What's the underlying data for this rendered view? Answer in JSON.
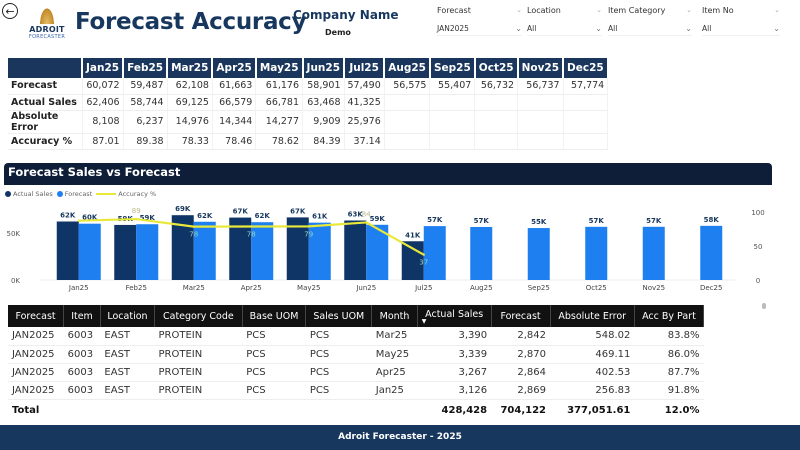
{
  "header": {
    "back_icon": "arrow-left-circle-icon",
    "logo_line1": "ADROIT",
    "logo_line2": "FORECASTER",
    "title": "Forecast Accuracy",
    "company_label": "Company Name",
    "company_value": "Demo"
  },
  "filters": [
    {
      "label": "Forecast",
      "value": "JAN2025"
    },
    {
      "label": "Location",
      "value": "All"
    },
    {
      "label": "Item Category",
      "value": "All"
    },
    {
      "label": "Item No",
      "value": "All"
    }
  ],
  "summary": {
    "months": [
      "Jan25",
      "Feb25",
      "Mar25",
      "Apr25",
      "May25",
      "Jun25",
      "Jul25",
      "Aug25",
      "Sep25",
      "Oct25",
      "Nov25",
      "Dec25"
    ],
    "rows": [
      {
        "label": "Forecast",
        "values": [
          "60,072",
          "59,487",
          "62,108",
          "61,663",
          "61,176",
          "58,901",
          "57,490",
          "56,575",
          "55,407",
          "56,732",
          "56,737",
          "57,774"
        ]
      },
      {
        "label": "Actual Sales",
        "values": [
          "62,406",
          "58,744",
          "69,125",
          "66,579",
          "66,781",
          "63,468",
          "41,325",
          "",
          "",
          "",
          "",
          ""
        ]
      },
      {
        "label": "Absolute Error",
        "values": [
          "8,108",
          "6,237",
          "14,976",
          "14,344",
          "14,277",
          "9,909",
          "25,976",
          "",
          "",
          "",
          "",
          ""
        ]
      },
      {
        "label": "Accuracy %",
        "values": [
          "87.01",
          "89.38",
          "78.33",
          "78.46",
          "78.62",
          "84.39",
          "37.14",
          "",
          "",
          "",
          "",
          ""
        ]
      }
    ]
  },
  "chart": {
    "title": "Forecast Sales vs Forecast",
    "legend": [
      "Actual Sales",
      "Forecast",
      "Accuracy %"
    ]
  },
  "chart_data": {
    "type": "bar",
    "title": "Forecast Sales vs Forecast",
    "categories": [
      "Jan25",
      "Feb25",
      "Mar25",
      "Apr25",
      "May25",
      "Jun25",
      "Jul25",
      "Aug25",
      "Sep25",
      "Oct25",
      "Nov25",
      "Dec25"
    ],
    "series": [
      {
        "name": "Actual Sales",
        "type": "bar",
        "color": "#0f3566",
        "values": [
          62406,
          58744,
          69125,
          66579,
          66781,
          63468,
          41325,
          null,
          null,
          null,
          null,
          null
        ],
        "labels": [
          "62K",
          "59K",
          "69K",
          "67K",
          "67K",
          "63K",
          "41K",
          "",
          "",
          "",
          "",
          ""
        ]
      },
      {
        "name": "Forecast",
        "type": "bar",
        "color": "#1e80f0",
        "values": [
          60072,
          59487,
          62108,
          61663,
          61176,
          58901,
          57490,
          56575,
          55407,
          56732,
          56737,
          57774
        ],
        "labels": [
          "60K",
          "59K",
          "62K",
          "62K",
          "61K",
          "59K",
          "57K",
          "57K",
          "55K",
          "57K",
          "57K",
          "58K"
        ]
      },
      {
        "name": "Accuracy %",
        "type": "line",
        "color": "#e8e83a",
        "axis": "right",
        "values": [
          87.01,
          89.38,
          78.33,
          78.46,
          78.62,
          84.39,
          37.14,
          null,
          null,
          null,
          null,
          null
        ],
        "labels": [
          "",
          "89",
          "78",
          "78",
          "79",
          "84",
          "37",
          "",
          "",
          "",
          "",
          ""
        ]
      }
    ],
    "y_left": {
      "ticks": [
        "0K",
        "50K"
      ],
      "range": [
        0,
        80000
      ]
    },
    "y_right": {
      "ticks": [
        "0",
        "50",
        "100"
      ],
      "range": [
        0,
        110
      ]
    },
    "legend_position": "top-left"
  },
  "detail": {
    "columns": [
      "Forecast",
      "Item",
      "Location",
      "Category Code",
      "Base UOM",
      "Sales UOM",
      "Month",
      "Actual Sales",
      "Forecast",
      "Absolute Error",
      "Acc By Part"
    ],
    "sort_icon": "sort-descending-icon",
    "rows": [
      [
        "JAN2025",
        "6003",
        "EAST",
        "PROTEIN",
        "PCS",
        "PCS",
        "Mar25",
        "3,390",
        "2,842",
        "548.02",
        "83.8%"
      ],
      [
        "JAN2025",
        "6003",
        "EAST",
        "PROTEIN",
        "PCS",
        "PCS",
        "May25",
        "3,339",
        "2,870",
        "469.11",
        "86.0%"
      ],
      [
        "JAN2025",
        "6003",
        "EAST",
        "PROTEIN",
        "PCS",
        "PCS",
        "Apr25",
        "3,267",
        "2,864",
        "402.53",
        "87.7%"
      ],
      [
        "JAN2025",
        "6003",
        "EAST",
        "PROTEIN",
        "PCS",
        "PCS",
        "Jan25",
        "3,126",
        "2,869",
        "256.83",
        "91.8%"
      ]
    ],
    "total": {
      "label": "Total",
      "actual_sales": "428,428",
      "forecast": "704,122",
      "absolute_error": "377,051.61",
      "acc_by_part": "12.0%"
    }
  },
  "footer": {
    "text": "Adroit Forecaster - 2025"
  }
}
